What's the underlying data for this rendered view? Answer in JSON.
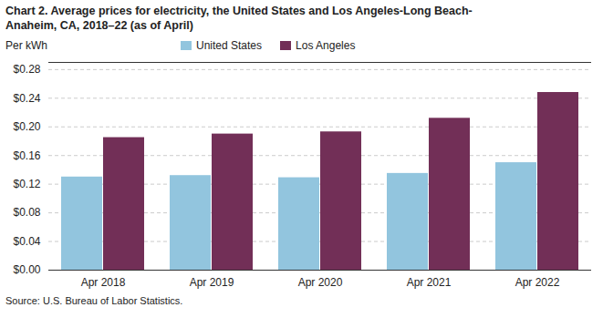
{
  "chart_data": {
    "type": "bar",
    "title": "Chart 2. Average prices for electricity, the United States and Los Angeles-Long Beach-\nAnaheim, CA, 2018–22 (as of April)",
    "ylabel": "Per kWh",
    "source": "Source: U.S. Bureau of Labor Statistics.",
    "categories": [
      "Apr 2018",
      "Apr 2019",
      "Apr 2020",
      "Apr 2021",
      "Apr 2022"
    ],
    "series": [
      {
        "name": "United States",
        "color": "#92C5DE",
        "values": [
          0.13,
          0.132,
          0.129,
          0.135,
          0.15
        ]
      },
      {
        "name": "Los Angeles",
        "color": "#722F57",
        "values": [
          0.185,
          0.19,
          0.193,
          0.212,
          0.248
        ]
      }
    ],
    "ylim": [
      0,
      0.29
    ],
    "yticks": [
      {
        "value": 0.0,
        "label": "$0.00"
      },
      {
        "value": 0.04,
        "label": "$0.04"
      },
      {
        "value": 0.08,
        "label": "$0.08"
      },
      {
        "value": 0.12,
        "label": "$0.12"
      },
      {
        "value": 0.16,
        "label": "$0.16"
      },
      {
        "value": 0.2,
        "label": "$0.20"
      },
      {
        "value": 0.24,
        "label": "$0.24"
      },
      {
        "value": 0.28,
        "label": "$0.28"
      }
    ],
    "grid": true,
    "legend": "top"
  }
}
